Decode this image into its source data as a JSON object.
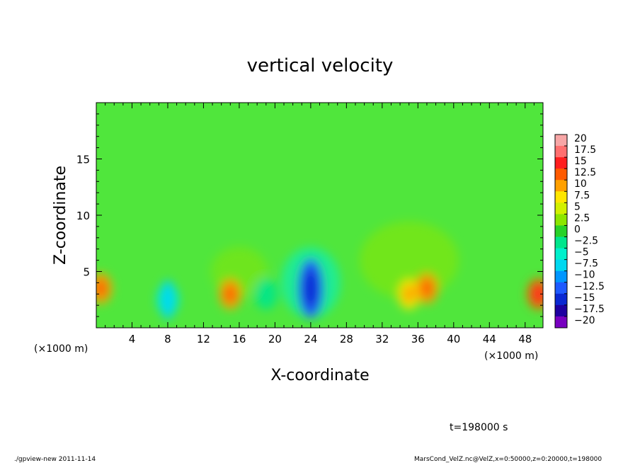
{
  "chart_data": {
    "type": "heatmap",
    "title": "vertical velocity",
    "xlabel": "X-coordinate",
    "ylabel": "Z-coordinate",
    "x_unit_label": "(×1000 m)",
    "xlim": [
      0,
      50
    ],
    "ylim": [
      0,
      20
    ],
    "x_ticks": [
      "4",
      "8",
      "12",
      "16",
      "20",
      "24",
      "28",
      "32",
      "36",
      "40",
      "44",
      "48"
    ],
    "y_ticks": [
      "5",
      "10",
      "15"
    ],
    "time_label": "t=198000 s",
    "colorbar": {
      "levels": [
        "20",
        "17.5",
        "15",
        "12.5",
        "10",
        "7.5",
        "5",
        "2.5",
        "0",
        "−2.5",
        "−5",
        "−7.5",
        "−10",
        "−12.5",
        "−15",
        "−17.5",
        "−20"
      ],
      "colors": [
        "#f7a6a6",
        "#ff6f6f",
        "#ff1e1e",
        "#ff5a00",
        "#ffa000",
        "#ffe600",
        "#d2f000",
        "#8ce600",
        "#28d228",
        "#00e68c",
        "#00f0cc",
        "#00d8f0",
        "#0096ff",
        "#1e5aff",
        "#0a28d2",
        "#1e00a0",
        "#7800c0"
      ]
    },
    "features": [
      {
        "x": 15,
        "z": 3,
        "value": 8
      },
      {
        "x": 24,
        "z": 3.5,
        "value": -13
      },
      {
        "x": 35,
        "z": 3,
        "value": 6
      },
      {
        "x": 37,
        "z": 3.5,
        "value": 8
      },
      {
        "x": 49.5,
        "z": 3,
        "value": 12
      },
      {
        "x": 0.5,
        "z": 3.5,
        "value": 9
      },
      {
        "x": 8,
        "z": 2.5,
        "value": -6
      },
      {
        "x": 19,
        "z": 3,
        "value": -3
      }
    ]
  },
  "footer": {
    "left": "./gpview-new   2011-11-14",
    "right": "MarsCond_VelZ.nc@VelZ,x=0:50000,z=0:20000,t=198000"
  }
}
